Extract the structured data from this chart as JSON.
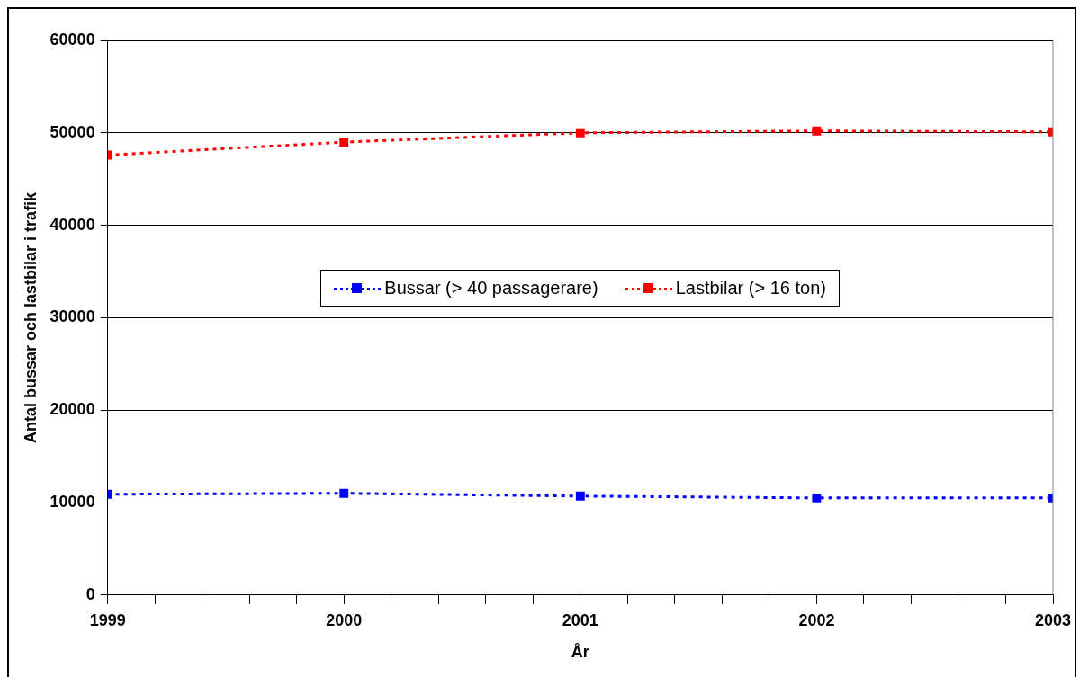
{
  "chart_data": {
    "type": "line",
    "xlabel": "År",
    "ylabel": "Antal bussar och lastbilar i trafik",
    "x": [
      1999,
      2000,
      2001,
      2002,
      2003
    ],
    "series": [
      {
        "name": "Bussar (> 40 passagerare)",
        "color": "#0000ff",
        "values": [
          10900,
          11000,
          10700,
          10500,
          10500
        ]
      },
      {
        "name": "Lastbilar (> 16 ton)",
        "color": "#ff0000",
        "values": [
          47600,
          49000,
          50000,
          50200,
          50100
        ]
      }
    ],
    "xlim": [
      1999,
      2003
    ],
    "xticks": [
      1999,
      {
        "value": 1999.2,
        "label": null
      },
      {
        "value": 1999.4,
        "label": null
      },
      {
        "value": 1999.6,
        "label": null
      },
      {
        "value": 1999.8,
        "label": null
      },
      2000,
      {
        "value": 2000.2,
        "label": null
      },
      {
        "value": 2000.4,
        "label": null
      },
      {
        "value": 2000.6,
        "label": null
      },
      {
        "value": 2000.8,
        "label": null
      },
      2001,
      {
        "value": 2001.2,
        "label": null
      },
      {
        "value": 2001.4,
        "label": null
      },
      {
        "value": 2001.6,
        "label": null
      },
      {
        "value": 2001.8,
        "label": null
      },
      2002,
      {
        "value": 2002.2,
        "label": null
      },
      {
        "value": 2002.4,
        "label": null
      },
      {
        "value": 2002.6,
        "label": null
      },
      {
        "value": 2002.8,
        "label": null
      },
      2003
    ],
    "ylim": [
      0,
      60000
    ],
    "yticks": [
      0,
      10000,
      20000,
      30000,
      40000,
      50000,
      60000
    ],
    "grid": "y",
    "legend": "center",
    "marker": "square",
    "line_style": "dotted"
  }
}
